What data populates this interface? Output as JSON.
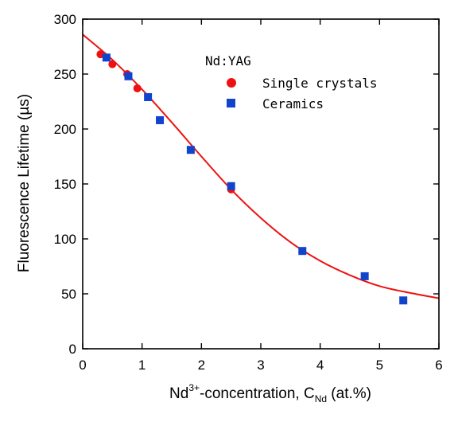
{
  "chart_data": {
    "type": "scatter",
    "legend": {
      "title": "Nd:YAG",
      "placement": "top-center"
    },
    "xlabel": {
      "prefix": "Nd",
      "prefix_sup": "3+",
      "middle": "-concentration, C",
      "sub": "Nd",
      "suffix": " (at.%)"
    },
    "ylabel": "Fluorescence Lifetime (µs)",
    "xlim": [
      0,
      6
    ],
    "ylim": [
      0,
      300
    ],
    "x_ticks": [
      "0",
      "1",
      "2",
      "3",
      "4",
      "5",
      "6"
    ],
    "y_ticks": [
      "0",
      "50",
      "100",
      "150",
      "200",
      "250",
      "300"
    ],
    "grid": false,
    "series": [
      {
        "name": "Single crystals",
        "marker": "circle",
        "color": "#ee1111",
        "points": [
          [
            0.3,
            268
          ],
          [
            0.5,
            259
          ],
          [
            0.75,
            250
          ],
          [
            0.92,
            237
          ],
          [
            1.3,
            208
          ],
          [
            2.5,
            145
          ]
        ]
      },
      {
        "name": "Ceramics",
        "marker": "square",
        "color": "#1144cc",
        "points": [
          [
            0.4,
            265
          ],
          [
            0.77,
            248
          ],
          [
            1.1,
            229
          ],
          [
            1.3,
            208
          ],
          [
            1.82,
            181
          ],
          [
            2.5,
            148
          ],
          [
            3.7,
            89
          ],
          [
            4.75,
            66
          ],
          [
            5.4,
            44
          ]
        ]
      },
      {
        "name": "",
        "kind": "fit-curve",
        "color": "#ee1111",
        "points": [
          [
            0,
            286
          ],
          [
            0.5,
            263
          ],
          [
            1,
            236
          ],
          [
            1.5,
            206
          ],
          [
            2,
            175
          ],
          [
            2.5,
            145
          ],
          [
            3,
            119
          ],
          [
            3.5,
            97
          ],
          [
            4,
            80
          ],
          [
            4.5,
            67
          ],
          [
            5,
            57
          ],
          [
            5.5,
            51
          ],
          [
            6,
            46
          ]
        ]
      }
    ]
  }
}
